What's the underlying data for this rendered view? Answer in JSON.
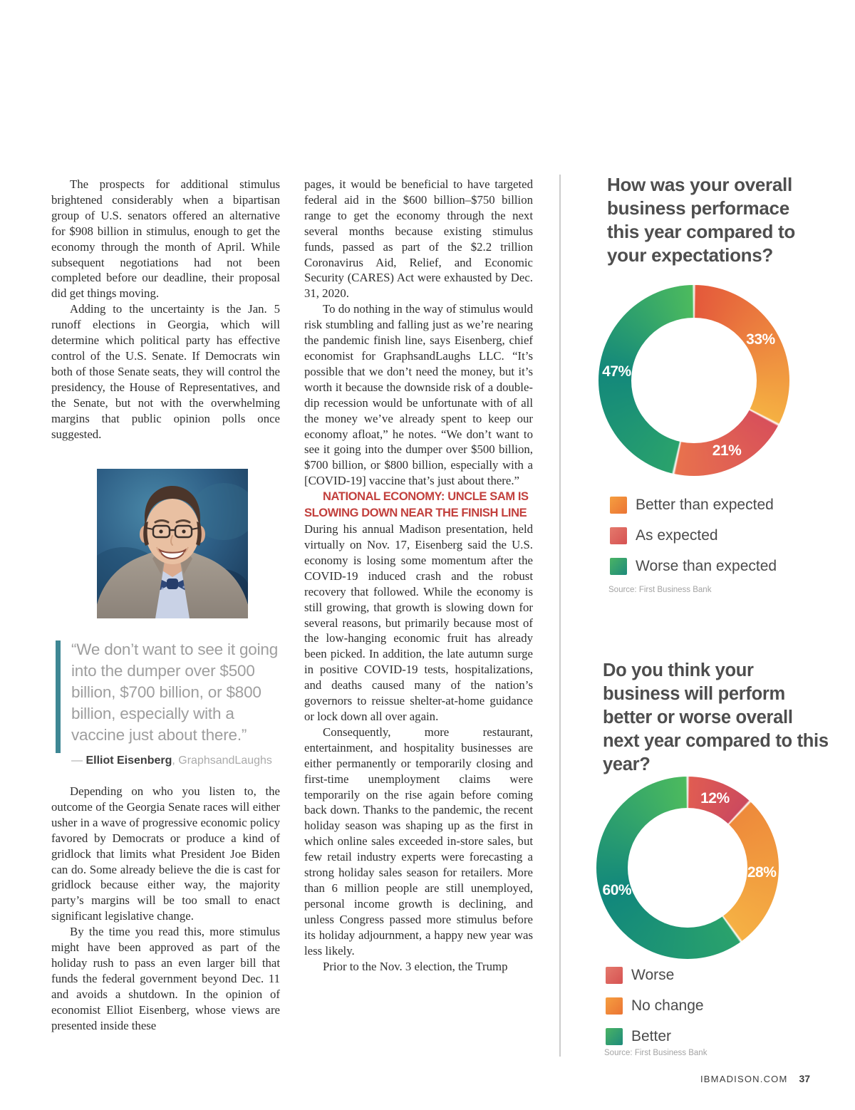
{
  "article": {
    "col1": {
      "p1": "The prospects for additional stimulus brightened considerably when a bipartisan group of U.S. senators offered an alternative for $908 billion in stimulus, enough to get the economy through the month of April. While subsequent negotiations had not been completed before our deadline, their proposal did get things moving.",
      "p2": "Adding to the uncertainty is the Jan. 5 runoff elections in Georgia, which will determine which political party has effective control of the U.S. Senate. If Democrats win both of those Senate seats, they will control the presidency, the House of Representatives, and the Senate, but not with the overwhelming margins that public opinion polls once suggested.",
      "p3": "Depending on who you listen to, the outcome of the Georgia Senate races will either usher in a wave of progressive economic policy favored by Democrats or produce a kind of gridlock that limits what President Joe Biden can do. Some already believe the die is cast for gridlock because either way, the majority party’s margins will be too small to enact significant legislative change.",
      "p4": "By the time you read this, more stimulus might have been approved as part of the holiday rush to pass an even larger bill that funds the federal government beyond Dec. 11 and avoids a shutdown. In the opinion of economist Elliot Eisenberg, whose views are presented inside these"
    },
    "pull_quote": {
      "text": "“We don’t want to see it going into the dumper over $500 billion, $700 billion, or $800 billion, especially with a vaccine just about there.”",
      "attribution_dash": "— ",
      "attribution_name": "Elliot Eisenberg",
      "attribution_rest": ", GraphsandLaughs"
    },
    "col2": {
      "p1": "pages, it would be beneficial to have targeted federal aid in the $600 billion–$750 billion range to get the economy through the next several months because existing stimulus funds, passed as part of the $2.2 trillion Coronavirus Aid, Relief, and Economic Security (CARES) Act were exhausted by Dec. 31, 2020.",
      "p2": "To do nothing in the way of stimulus would risk stumbling and falling just as we’re nearing the pandemic finish line, says Eisenberg, chief economist for GraphsandLaughs LLC. “It’s possible that we don’t need the money, but it’s worth it because the downside risk of a double-dip recession would be unfortunate with of all the money we’ve already spent to keep our economy afloat,” he notes. “We don’t want to see it going into the dumper over $500 billion, $700 billion, or $800 billion, especially with a [COVID-19] vaccine that’s just about there.”",
      "heading": "NATIONAL ECONOMY: UNCLE SAM IS\nSLOWING DOWN NEAR THE FINISH LINE",
      "p3": "During his annual Madison presentation, held virtually on Nov. 17, Eisenberg said the U.S. economy is losing some momentum after the COVID-19 induced crash and the robust recovery that followed. While the economy is still growing, that growth is slowing down for several reasons, but primarily because most of the low-hanging economic fruit has already been picked. In addition, the late autumn surge in positive COVID-19 tests, hospitalizations, and deaths caused many of the nation’s governors to reissue shelter-at-home guidance or lock down all over again.",
      "p4": "Consequently, more restaurant, entertainment, and hospitality businesses are either permanently or temporarily closing and first-time unemployment claims were temporarily on the rise again before coming back down. Thanks to the pandemic, the recent holiday season was shaping up as the first in which online sales exceeded in-store sales, but few retail industry experts were forecasting a strong holiday sales season for retailers. More than 6 million people are still unemployed, personal income growth is declining, and unless Congress passed more stimulus before its holiday adjournment, a happy new year was less likely.",
      "p5": "Prior to the Nov. 3 election, the Trump"
    }
  },
  "chart_data": [
    {
      "type": "donut",
      "title": "How was your overall business performace this year compared to your expectations?",
      "source": "Source: First Business Bank",
      "legend_position": "bottom",
      "segments": [
        {
          "label": "Better than expected",
          "value": 33,
          "pct_label": "33%",
          "colors": [
            "#e4593b",
            "#f5b042"
          ],
          "legend_colors": [
            "#f59e40",
            "#eb7434"
          ]
        },
        {
          "label": "As expected",
          "value": 21,
          "pct_label": "21%",
          "colors": [
            "#d8505a",
            "#e8714d"
          ],
          "legend_colors": [
            "#e4796c",
            "#d65252"
          ]
        },
        {
          "label": "Worse than expected",
          "value": 47,
          "pct_label": "47%",
          "colors": [
            "#2aa26c",
            "#13887b",
            "#4cba5e"
          ],
          "legend_colors": [
            "#4ab364",
            "#1e8b7b"
          ]
        }
      ]
    },
    {
      "type": "donut",
      "title": "Do you think your business will perform better or worse overall next year compared to this year?",
      "source": "Source: First Business Bank",
      "legend_position": "bottom",
      "segments": [
        {
          "label": "Worse",
          "value": 12,
          "pct_label": "12%",
          "colors": [
            "#e05c52",
            "#cc4a5e"
          ],
          "legend_colors": [
            "#e4796c",
            "#d65252"
          ]
        },
        {
          "label": "No change",
          "value": 28,
          "pct_label": "28%",
          "colors": [
            "#ee8a3b",
            "#f5b044"
          ],
          "legend_colors": [
            "#f59e40",
            "#eb7434"
          ]
        },
        {
          "label": "Better",
          "value": 60,
          "pct_label": "60%",
          "colors": [
            "#2aa26c",
            "#11877c",
            "#4cba5e"
          ],
          "legend_colors": [
            "#4ab364",
            "#1e8b7b"
          ]
        }
      ]
    }
  ],
  "footer": {
    "site": "IBMADISON.COM",
    "page_number": "37"
  }
}
